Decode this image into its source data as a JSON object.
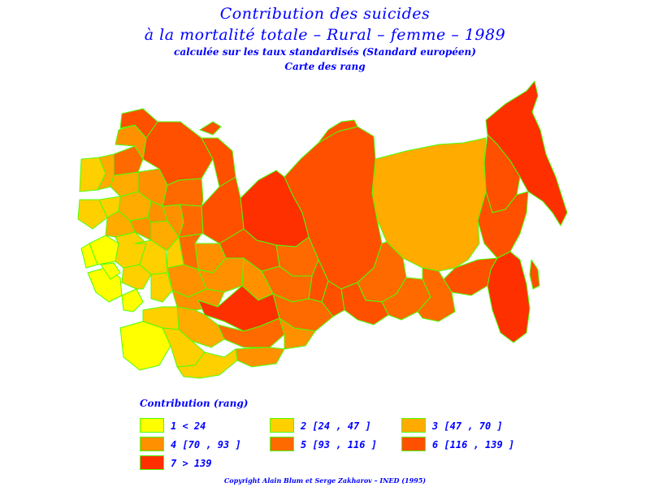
{
  "title": {
    "line1": "Contribution des suicides",
    "line2": "à la mortalité totale  –  Rural  –  femme  –  1989",
    "line3": "calculée sur les taux standardisés (Standard européen)",
    "line4": "Carte des rang"
  },
  "legend": {
    "title": "Contribution (rang)",
    "items": [
      {
        "label": "1  <  24",
        "color": "#ffff00"
      },
      {
        "label": "2 [24 , 47 ]",
        "color": "#ffd000"
      },
      {
        "label": "3 [47 , 70 ]",
        "color": "#ffab00"
      },
      {
        "label": "4 [70 , 93 ]",
        "color": "#ff9100"
      },
      {
        "label": "5 [93 , 116 ]",
        "color": "#ff6a00"
      },
      {
        "label": "6 [116 , 139 ]",
        "color": "#ff5000"
      },
      {
        "label": "7  >  139",
        "color": "#ff3000"
      }
    ]
  },
  "copyright": "Copyright Alain Blum et Serge Zakharov  –  INED (1995)",
  "colors": {
    "text": "#0000ff",
    "border": "#4cff00",
    "background": "#ffffff"
  }
}
